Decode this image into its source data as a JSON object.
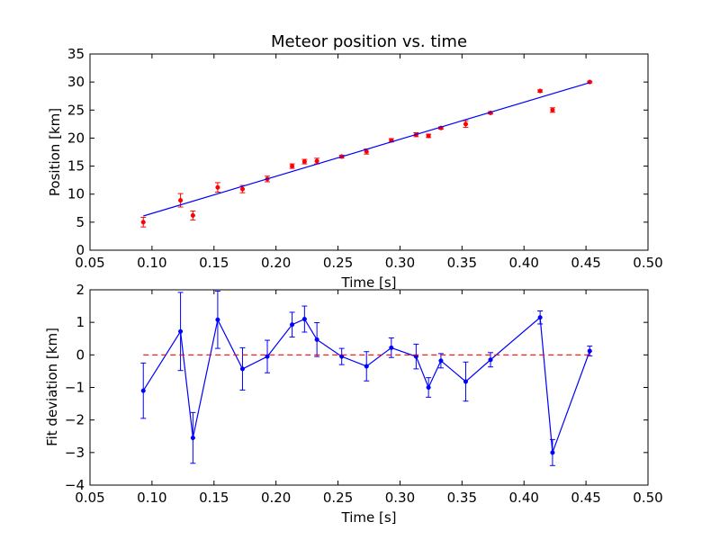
{
  "chart_data": [
    {
      "type": "scatter",
      "title": "Meteor position vs. time",
      "xlabel": "Time [s]",
      "ylabel": "Position [km]",
      "xlim": [
        0.05,
        0.5
      ],
      "ylim": [
        0,
        35
      ],
      "xticks": [
        "0.05",
        "0.10",
        "0.15",
        "0.20",
        "0.25",
        "0.30",
        "0.35",
        "0.40",
        "0.45",
        "0.50"
      ],
      "yticks": [
        "0",
        "5",
        "10",
        "15",
        "20",
        "25",
        "30",
        "35"
      ],
      "grid": false,
      "series": [
        {
          "kind": "errorbar-points",
          "color": "#ff0000",
          "x": [
            0.093,
            0.123,
            0.133,
            0.153,
            0.173,
            0.193,
            0.213,
            0.223,
            0.233,
            0.253,
            0.273,
            0.293,
            0.313,
            0.323,
            0.333,
            0.353,
            0.373,
            0.413,
            0.423,
            0.453
          ],
          "y": [
            5.0,
            8.9,
            6.2,
            11.2,
            10.9,
            12.7,
            15.0,
            15.8,
            15.9,
            16.7,
            17.6,
            19.6,
            20.6,
            20.4,
            21.8,
            22.5,
            24.5,
            28.4,
            25.0,
            30.0
          ],
          "yerr": [
            0.85,
            1.2,
            0.8,
            0.85,
            0.65,
            0.5,
            0.4,
            0.4,
            0.5,
            0.25,
            0.45,
            0.3,
            0.35,
            0.3,
            0.2,
            0.6,
            0.2,
            0.2,
            0.4,
            0.15
          ]
        },
        {
          "kind": "line",
          "color": "#0000ff",
          "x": [
            0.093,
            0.453
          ],
          "y": [
            6.1,
            29.9
          ]
        }
      ]
    },
    {
      "type": "line",
      "title": "",
      "xlabel": "Time [s]",
      "ylabel": "Fit deviation [km]",
      "xlim": [
        0.05,
        0.5
      ],
      "ylim": [
        -4,
        2
      ],
      "xticks": [
        "0.05",
        "0.10",
        "0.15",
        "0.20",
        "0.25",
        "0.30",
        "0.35",
        "0.40",
        "0.45",
        "0.50"
      ],
      "yticks": [
        "−4",
        "−3",
        "−2",
        "−1",
        "0",
        "1",
        "2"
      ],
      "grid": false,
      "series": [
        {
          "kind": "errorbar-line",
          "color": "#0000ff",
          "x": [
            0.093,
            0.123,
            0.133,
            0.153,
            0.173,
            0.193,
            0.213,
            0.223,
            0.233,
            0.253,
            0.273,
            0.293,
            0.313,
            0.323,
            0.333,
            0.353,
            0.373,
            0.413,
            0.423,
            0.453
          ],
          "y": [
            -1.1,
            0.72,
            -2.55,
            1.08,
            -0.43,
            -0.05,
            0.93,
            1.1,
            0.47,
            -0.05,
            -0.35,
            0.22,
            -0.05,
            -1.0,
            -0.18,
            -0.82,
            -0.15,
            1.15,
            -3.0,
            0.12
          ],
          "yerr": [
            0.85,
            1.2,
            0.78,
            0.88,
            0.65,
            0.5,
            0.38,
            0.4,
            0.52,
            0.25,
            0.45,
            0.3,
            0.38,
            0.3,
            0.22,
            0.6,
            0.22,
            0.2,
            0.4,
            0.15
          ]
        },
        {
          "kind": "dashed-zero",
          "color": "#ff0000",
          "x": [
            0.093,
            0.453
          ],
          "y": [
            0,
            0
          ]
        }
      ]
    }
  ]
}
